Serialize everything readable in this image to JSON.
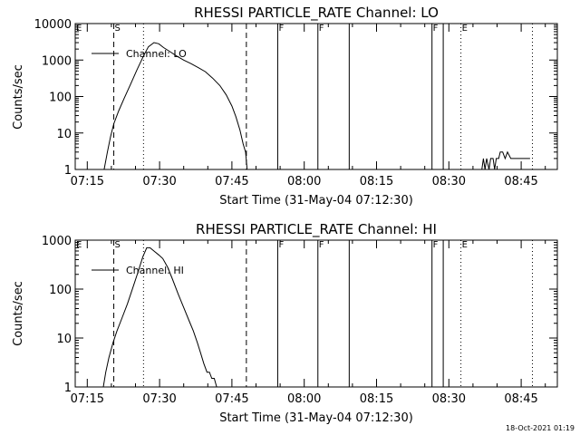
{
  "footer_timestamp": "18-Oct-2021 01:19",
  "chart_data": [
    {
      "type": "line",
      "title": "RHESSI PARTICLE_RATE Channel: LO",
      "xlabel": "Start Time (31-May-04 07:12:30)",
      "ylabel": "Counts/sec",
      "y_scale": "log",
      "ylim": [
        1,
        10000
      ],
      "y_ticks": [
        {
          "value": 10000,
          "label": "10000"
        },
        {
          "value": 1000,
          "label": "1000"
        },
        {
          "value": 100,
          "label": "100"
        },
        {
          "value": 10,
          "label": "10"
        },
        {
          "value": 1,
          "label": "1"
        }
      ],
      "x_range_min": [
        "07:12:30",
        "08:52:30"
      ],
      "x_ticks": [
        "07:15",
        "07:30",
        "07:45",
        "08:00",
        "08:15",
        "08:30",
        "08:45"
      ],
      "legend": {
        "label": "Channel: LO",
        "position": "top-left"
      },
      "markers": [
        {
          "time": "07:12:30",
          "label": "E",
          "style": "solid"
        },
        {
          "time": "07:20:30",
          "label": "S",
          "style": "dashed"
        },
        {
          "time": "07:26:40",
          "label": "",
          "style": "dotted"
        },
        {
          "time": "07:48:00",
          "label": "",
          "style": "dashed"
        },
        {
          "time": "07:54:30",
          "label": "F",
          "style": "solid"
        },
        {
          "time": "08:02:50",
          "label": "F",
          "style": "solid"
        },
        {
          "time": "08:09:20",
          "label": "",
          "style": "solid"
        },
        {
          "time": "08:26:30",
          "label": "F",
          "style": "solid"
        },
        {
          "time": "08:28:50",
          "label": "",
          "style": "solid"
        },
        {
          "time": "08:32:30",
          "label": "E",
          "style": "dotted"
        },
        {
          "time": "08:47:20",
          "label": "",
          "style": "dotted"
        }
      ],
      "series": [
        {
          "name": "Channel: LO",
          "segments": [
            [
              [
                "07:18:30",
                1
              ],
              [
                "07:19:10",
                3
              ],
              [
                "07:19:50",
                8
              ],
              [
                "07:20:30",
                18
              ],
              [
                "07:21:30",
                40
              ],
              [
                "07:22:40",
                90
              ],
              [
                "07:24:00",
                220
              ],
              [
                "07:25:20",
                550
              ],
              [
                "07:26:40",
                1300
              ],
              [
                "07:27:40",
                2300
              ],
              [
                "07:28:50",
                3000
              ],
              [
                "07:29:50",
                2800
              ],
              [
                "07:30:50",
                2200
              ],
              [
                "07:32:10",
                1700
              ],
              [
                "07:33:30",
                1300
              ],
              [
                "07:35:00",
                1000
              ],
              [
                "07:36:30",
                800
              ],
              [
                "07:38:00",
                620
              ],
              [
                "07:39:30",
                480
              ],
              [
                "07:41:00",
                320
              ],
              [
                "07:42:30",
                200
              ],
              [
                "07:43:50",
                110
              ],
              [
                "07:45:00",
                55
              ],
              [
                "07:45:50",
                28
              ],
              [
                "07:46:40",
                12
              ],
              [
                "07:47:20",
                5
              ],
              [
                "07:47:50",
                3
              ],
              [
                "07:48:10",
                1
              ]
            ],
            [
              [
                "08:36:50",
                1
              ],
              [
                "08:37:10",
                2
              ],
              [
                "08:37:30",
                1
              ],
              [
                "08:37:50",
                2
              ],
              [
                "08:38:20",
                1
              ],
              [
                "08:38:40",
                2
              ],
              [
                "08:39:10",
                2
              ],
              [
                "08:39:30",
                1
              ],
              [
                "08:39:50",
                2
              ],
              [
                "08:40:20",
                2
              ],
              [
                "08:40:40",
                3
              ],
              [
                "08:41:10",
                3
              ],
              [
                "08:41:40",
                2
              ],
              [
                "08:42:10",
                3
              ],
              [
                "08:42:50",
                2
              ],
              [
                "08:45:00",
                2
              ],
              [
                "08:46:50",
                2
              ]
            ]
          ]
        }
      ]
    },
    {
      "type": "line",
      "title": "RHESSI PARTICLE_RATE Channel: HI",
      "xlabel": "Start Time (31-May-04 07:12:30)",
      "ylabel": "Counts/sec",
      "y_scale": "log",
      "ylim": [
        1,
        1000
      ],
      "y_ticks": [
        {
          "value": 1000,
          "label": "1000"
        },
        {
          "value": 100,
          "label": "100"
        },
        {
          "value": 10,
          "label": "10"
        },
        {
          "value": 1,
          "label": "1"
        }
      ],
      "x_range_min": [
        "07:12:30",
        "08:52:30"
      ],
      "x_ticks": [
        "07:15",
        "07:30",
        "07:45",
        "08:00",
        "08:15",
        "08:30",
        "08:45"
      ],
      "legend": {
        "label": "Channel: HI",
        "position": "top-left"
      },
      "markers": [
        {
          "time": "07:12:30",
          "label": "E",
          "style": "solid"
        },
        {
          "time": "07:20:30",
          "label": "S",
          "style": "dashed"
        },
        {
          "time": "07:26:40",
          "label": "",
          "style": "dotted"
        },
        {
          "time": "07:48:00",
          "label": "",
          "style": "dashed"
        },
        {
          "time": "07:54:30",
          "label": "F",
          "style": "solid"
        },
        {
          "time": "08:02:50",
          "label": "F",
          "style": "solid"
        },
        {
          "time": "08:09:20",
          "label": "",
          "style": "solid"
        },
        {
          "time": "08:26:30",
          "label": "F",
          "style": "solid"
        },
        {
          "time": "08:28:50",
          "label": "",
          "style": "solid"
        },
        {
          "time": "08:32:30",
          "label": "E",
          "style": "dotted"
        },
        {
          "time": "08:47:20",
          "label": "",
          "style": "dotted"
        }
      ],
      "series": [
        {
          "name": "Channel: HI",
          "segments": [
            [
              [
                "07:18:20",
                1
              ],
              [
                "07:18:50",
                2
              ],
              [
                "07:19:30",
                4
              ],
              [
                "07:20:20",
                8
              ],
              [
                "07:21:10",
                14
              ],
              [
                "07:22:10",
                25
              ],
              [
                "07:23:20",
                50
              ],
              [
                "07:24:30",
                110
              ],
              [
                "07:25:30",
                220
              ],
              [
                "07:26:30",
                450
              ],
              [
                "07:27:20",
                700
              ],
              [
                "07:28:00",
                700
              ],
              [
                "07:28:50",
                600
              ],
              [
                "07:29:50",
                500
              ],
              [
                "07:30:40",
                420
              ],
              [
                "07:31:40",
                280
              ],
              [
                "07:32:40",
                160
              ],
              [
                "07:33:50",
                80
              ],
              [
                "07:35:00",
                42
              ],
              [
                "07:36:10",
                22
              ],
              [
                "07:37:00",
                14
              ],
              [
                "07:37:50",
                8
              ],
              [
                "07:38:30",
                5
              ],
              [
                "07:39:10",
                3
              ],
              [
                "07:39:50",
                2
              ],
              [
                "07:40:20",
                2
              ],
              [
                "07:40:50",
                1.5
              ],
              [
                "07:41:20",
                1.5
              ],
              [
                "07:41:50",
                1
              ]
            ]
          ]
        }
      ]
    }
  ]
}
